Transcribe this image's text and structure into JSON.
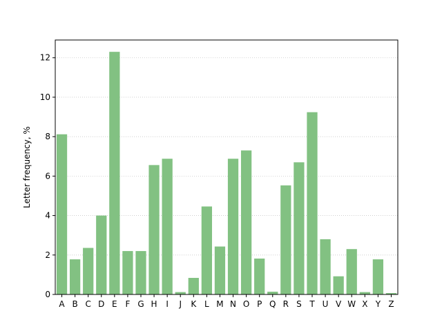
{
  "chart_data": {
    "type": "bar",
    "title": "",
    "xlabel": "",
    "ylabel": "Letter frequency, %",
    "categories": [
      "A",
      "B",
      "C",
      "D",
      "E",
      "F",
      "G",
      "H",
      "I",
      "J",
      "K",
      "L",
      "M",
      "N",
      "O",
      "P",
      "Q",
      "R",
      "S",
      "T",
      "U",
      "V",
      "W",
      "X",
      "Y",
      "Z"
    ],
    "values": [
      8.12,
      1.78,
      2.36,
      4.0,
      12.3,
      2.2,
      2.2,
      6.56,
      6.88,
      0.12,
      0.84,
      4.46,
      2.43,
      6.88,
      7.3,
      1.82,
      0.14,
      5.53,
      6.7,
      9.24,
      2.8,
      0.92,
      2.3,
      0.12,
      1.78,
      0.07
    ],
    "ylim": [
      0,
      12.9
    ],
    "yticks": [
      0,
      2,
      4,
      6,
      8,
      10,
      12
    ],
    "grid": "y-dotted",
    "bar_color": "#82c182"
  }
}
